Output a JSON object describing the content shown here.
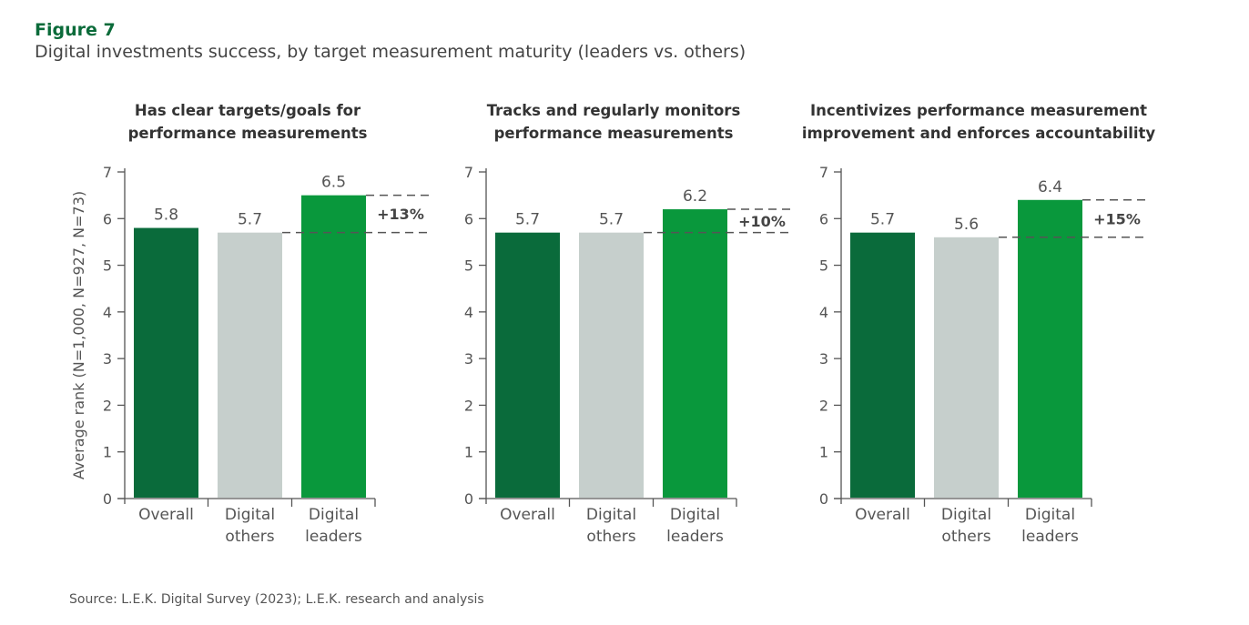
{
  "figure_label": "Figure 7",
  "figure_title": "Digital investments success, by target measurement maturity (leaders vs. others)",
  "source": "Source: L.E.K. Digital Survey (2023); L.E.K. research and analysis",
  "colors": {
    "overall": "#0a6b3b",
    "digital_others": "#c6cfcc",
    "digital_leaders": "#09983c",
    "axis": "#555555",
    "dash": "#555555"
  },
  "chart_data": [
    {
      "type": "bar",
      "title_lines": [
        "Has clear targets/goals for",
        "performance measurements"
      ],
      "categories": [
        [
          "Overall"
        ],
        [
          "Digital",
          "others"
        ],
        [
          "Digital",
          "leaders"
        ]
      ],
      "values": [
        5.8,
        5.7,
        6.5
      ],
      "value_labels": [
        "5.8",
        "5.7",
        "6.5"
      ],
      "delta_label": "+13%",
      "ylabel": "Average rank (N=1,000, N=927, N=73)",
      "ylim": [
        0,
        7
      ],
      "yticks": [
        0,
        1,
        2,
        3,
        4,
        5,
        6,
        7
      ],
      "grid": false
    },
    {
      "type": "bar",
      "title_lines": [
        "Tracks and regularly monitors",
        "performance measurements"
      ],
      "categories": [
        [
          "Overall"
        ],
        [
          "Digital",
          "others"
        ],
        [
          "Digital",
          "leaders"
        ]
      ],
      "values": [
        5.7,
        5.7,
        6.2
      ],
      "value_labels": [
        "5.7",
        "5.7",
        "6.2"
      ],
      "delta_label": "+10%",
      "ylabel": "",
      "ylim": [
        0,
        7
      ],
      "yticks": [
        0,
        1,
        2,
        3,
        4,
        5,
        6,
        7
      ],
      "grid": false
    },
    {
      "type": "bar",
      "title_lines": [
        "Incentivizes performance measurement",
        "improvement and enforces accountability"
      ],
      "categories": [
        [
          "Overall"
        ],
        [
          "Digital",
          "others"
        ],
        [
          "Digital",
          "leaders"
        ]
      ],
      "values": [
        5.7,
        5.6,
        6.4
      ],
      "value_labels": [
        "5.7",
        "5.6",
        "6.4"
      ],
      "delta_label": "+15%",
      "ylabel": "",
      "ylim": [
        0,
        7
      ],
      "yticks": [
        0,
        1,
        2,
        3,
        4,
        5,
        6,
        7
      ],
      "grid": false
    }
  ]
}
